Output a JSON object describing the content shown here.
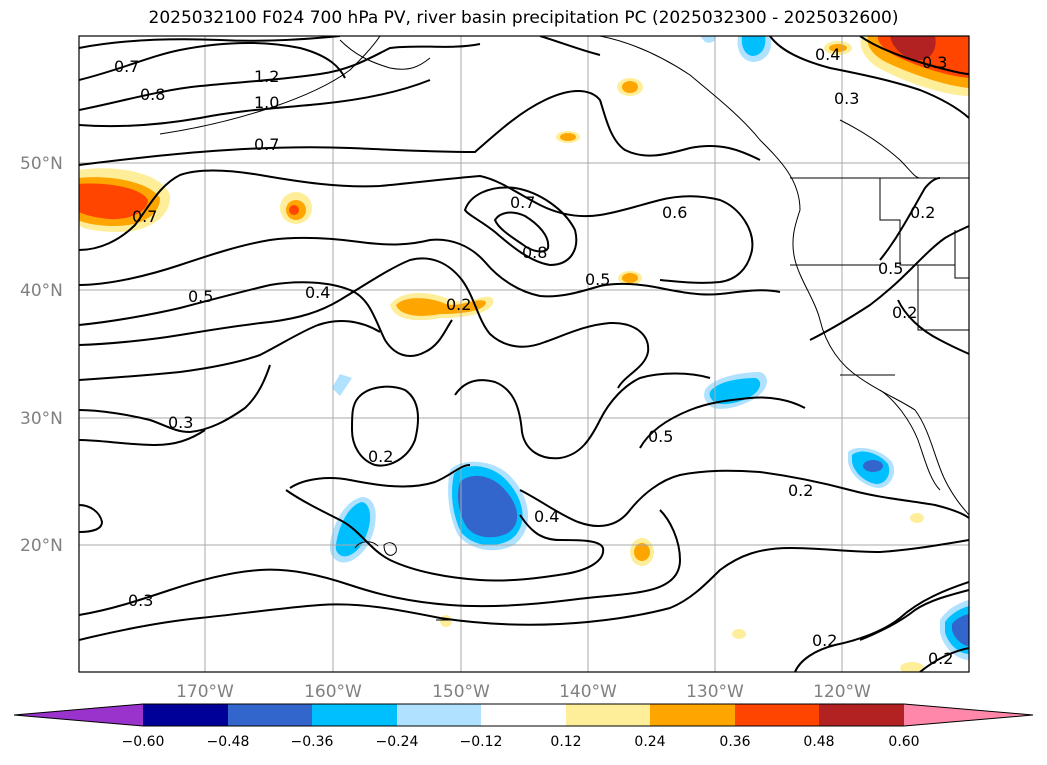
{
  "title": "2025032100 F024 700 hPa PV, river basin precipitation PC (2025032300 - 2025032600)",
  "lat_labels": [
    "50°N",
    "40°N",
    "30°N",
    "20°N"
  ],
  "lon_labels": [
    "170°W",
    "160°W",
    "150°W",
    "140°W",
    "130°W",
    "120°W"
  ],
  "colorbar": {
    "ticks": [
      "−0.60",
      "−0.48",
      "−0.36",
      "−0.24",
      "−0.12",
      "0.12",
      "0.24",
      "0.36",
      "0.48",
      "0.60"
    ],
    "colors": [
      "#9933cc",
      "#000099",
      "#3366cc",
      "#00bfff",
      "#b0e2ff",
      "#ffffff",
      "#ffee99",
      "#ffa500",
      "#ff4500",
      "#b22222",
      "#ff88aa"
    ]
  },
  "pv_contour_labels": [
    "0.7",
    "0.8",
    "1.2",
    "1.0",
    "0.7",
    "0.4",
    "0.3",
    "0.3",
    "0.7",
    "0.7",
    "0.8",
    "0.6",
    "0.5",
    "0.4",
    "0.2",
    "0.5",
    "0.2",
    "0.5",
    "0.2",
    "0.3",
    "0.2",
    "0.4",
    "0.5",
    "0.2",
    "0.3",
    "0.2",
    "0.2"
  ]
}
